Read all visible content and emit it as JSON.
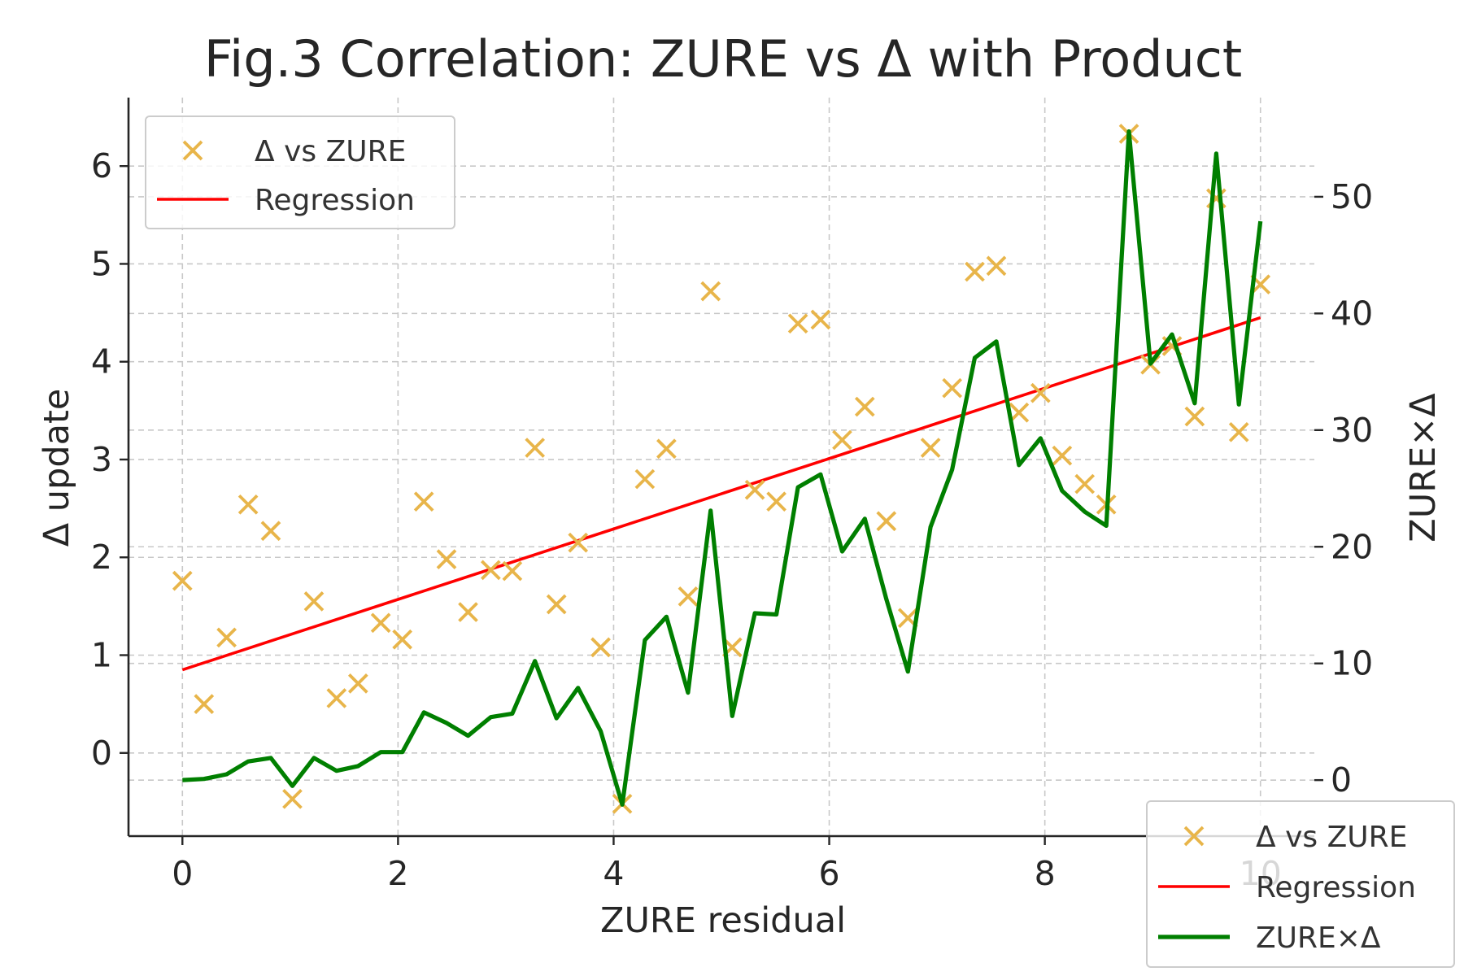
{
  "chart_data": {
    "type": "scatter",
    "title": "Fig.3 Correlation: ZURE vs Δ with Product",
    "xlabel": "ZURE residual",
    "ylabel": "Δ update",
    "y2label": "ZURE×Δ",
    "xlim": [
      -0.5,
      10.5
    ],
    "ylim": [
      -0.85,
      6.7
    ],
    "y2lim": [
      -4.8,
      58.5
    ],
    "xticks": [
      0,
      2,
      4,
      6,
      8,
      10
    ],
    "yticks": [
      0,
      1,
      2,
      3,
      4,
      5,
      6
    ],
    "y2ticks": [
      0,
      10,
      20,
      30,
      40,
      50
    ],
    "grid": true,
    "x": [
      0.0,
      0.2,
      0.41,
      0.61,
      0.82,
      1.02,
      1.22,
      1.43,
      1.63,
      1.84,
      2.04,
      2.24,
      2.45,
      2.65,
      2.86,
      3.06,
      3.27,
      3.47,
      3.67,
      3.88,
      4.08,
      4.29,
      4.49,
      4.69,
      4.9,
      5.1,
      5.31,
      5.51,
      5.71,
      5.92,
      6.12,
      6.33,
      6.53,
      6.73,
      6.94,
      7.14,
      7.35,
      7.55,
      7.76,
      7.96,
      8.16,
      8.37,
      8.57,
      8.78,
      8.98,
      9.18,
      9.39,
      9.59,
      9.8,
      10.0
    ],
    "series": [
      {
        "name": "Δ vs ZURE",
        "kind": "scatter",
        "marker": "x",
        "color": "#E8B54A",
        "axis": "left",
        "values": [
          1.76,
          0.5,
          1.18,
          2.54,
          2.27,
          -0.47,
          1.55,
          0.56,
          0.71,
          1.33,
          1.16,
          2.57,
          1.98,
          1.44,
          1.87,
          1.86,
          3.12,
          1.52,
          2.15,
          1.08,
          -0.52,
          2.8,
          3.11,
          1.6,
          4.72,
          1.08,
          2.69,
          2.57,
          4.39,
          4.43,
          3.2,
          3.54,
          2.37,
          1.38,
          3.12,
          3.73,
          4.92,
          4.98,
          3.48,
          3.68,
          3.04,
          2.75,
          2.54,
          6.33,
          3.97,
          4.16,
          3.44,
          5.67,
          3.28,
          4.79
        ]
      },
      {
        "name": "Regression",
        "kind": "line",
        "color": "#FF0000",
        "axis": "left",
        "x": [
          0,
          10
        ],
        "values": [
          0.85,
          4.45
        ]
      },
      {
        "name": "ZURE×Δ",
        "kind": "line",
        "color": "#007F00",
        "axis": "right",
        "values": [
          0.0,
          0.1,
          0.5,
          1.6,
          1.9,
          -0.5,
          1.9,
          0.8,
          1.2,
          2.4,
          2.4,
          5.8,
          4.9,
          3.8,
          5.4,
          5.7,
          10.2,
          5.3,
          7.9,
          4.2,
          -2.1,
          12.0,
          14.0,
          7.5,
          23.1,
          5.5,
          14.3,
          14.2,
          25.1,
          26.2,
          19.6,
          22.4,
          15.5,
          9.3,
          21.7,
          26.6,
          36.2,
          37.6,
          27.0,
          29.3,
          24.8,
          23.0,
          21.8,
          55.6,
          35.7,
          38.2,
          32.3,
          53.7,
          32.2,
          47.9
        ]
      }
    ],
    "legends": [
      {
        "placement": "upper-left",
        "entries": [
          "Δ vs ZURE",
          "Regression"
        ]
      },
      {
        "placement": "lower-right",
        "entries": [
          "Δ vs ZURE",
          "Regression",
          "ZURE×Δ"
        ]
      }
    ]
  }
}
